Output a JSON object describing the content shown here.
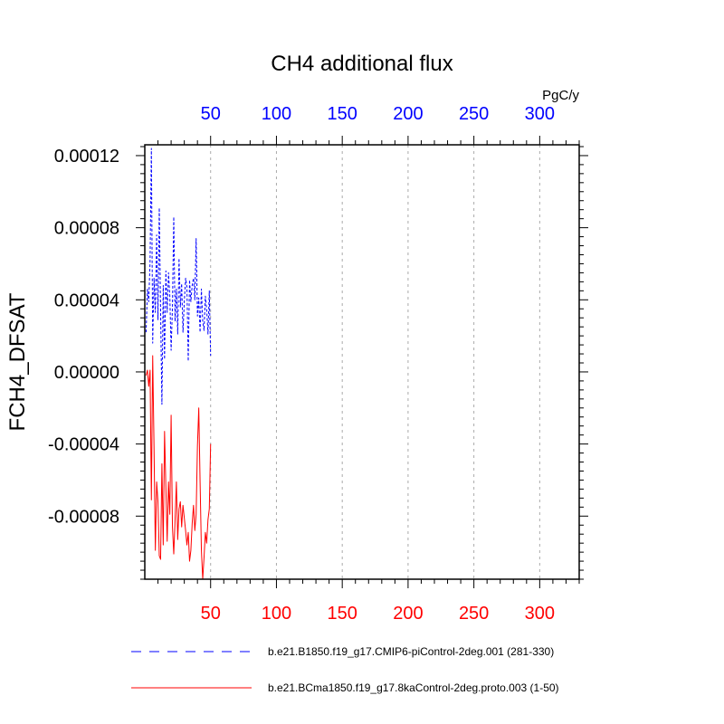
{
  "chart_data": {
    "type": "line",
    "title": "CH4 additional flux",
    "ylabel": "FCH4_DFSAT",
    "units_label": "PgC/y",
    "xlim": [
      0,
      330
    ],
    "ylim": [
      -0.000115,
      0.000126
    ],
    "grid": "vertical dotted",
    "x_ticks": [
      50,
      100,
      150,
      200,
      250,
      300
    ],
    "x_tick_labels_top": [
      "50",
      "100",
      "150",
      "200",
      "250",
      "300"
    ],
    "x_tick_labels_bottom": [
      "50",
      "100",
      "150",
      "200",
      "250",
      "300"
    ],
    "y_ticks": [
      0.00012,
      8e-05,
      4e-05,
      0.0,
      -4e-05,
      -8e-05
    ],
    "y_tick_labels": [
      "0.00012",
      "0.00008",
      "0.00004",
      "0.00000",
      "-0.00004",
      "-0.00008"
    ],
    "top_axis_color": "#0000ff",
    "bottom_axis_color": "#ff0000",
    "series": [
      {
        "name": "b.e21.B1850.f19_g17.CMIP6-piControl-2deg.001 (281-330)",
        "color": "#0000ff",
        "dash": "dashed",
        "x": [
          1,
          2,
          3,
          4,
          5,
          6,
          7,
          8,
          9,
          10,
          11,
          12,
          13,
          14,
          15,
          16,
          17,
          18,
          19,
          20,
          21,
          22,
          23,
          24,
          25,
          26,
          27,
          28,
          29,
          30,
          31,
          32,
          33,
          34,
          35,
          36,
          37,
          38,
          39,
          40,
          41,
          42,
          43,
          44,
          45,
          46,
          47,
          48,
          49,
          50
        ],
        "values": [
          2.2e-05,
          4.6e-05,
          3.9e-05,
          6.1e-05,
          0.000124,
          1.6e-05,
          5.2e-05,
          3.3e-05,
          7.6e-05,
          2.9e-05,
          9.1e-05,
          3.4e-05,
          -1.8e-05,
          4.8e-05,
          7e-06,
          5.6e-05,
          3.3e-05,
          5.5e-05,
          4.2e-05,
          1.2e-05,
          3.6e-05,
          8.6e-05,
          2.8e-05,
          4.6e-05,
          2.1e-05,
          6.3e-05,
          3.6e-05,
          4.9e-05,
          2.2e-05,
          3.9e-05,
          5.2e-05,
          4.7e-05,
          6e-06,
          5.1e-05,
          3.9e-05,
          4.8e-05,
          5.2e-05,
          4e-05,
          7.4e-05,
          3.1e-05,
          4.1e-05,
          2.2e-05,
          4.6e-05,
          2.8e-05,
          2.3e-05,
          4.2e-05,
          3.5e-05,
          2.1e-05,
          4.5e-05,
          9e-06
        ]
      },
      {
        "name": "b.e21.BCma1850.f19_g17.8kaControl-2deg.proto.003 (1-50)",
        "color": "#ff0000",
        "dash": "solid",
        "x": [
          1,
          2,
          3,
          4,
          5,
          6,
          7,
          8,
          9,
          10,
          11,
          12,
          13,
          14,
          15,
          16,
          17,
          18,
          19,
          20,
          21,
          22,
          23,
          24,
          25,
          26,
          27,
          28,
          29,
          30,
          31,
          32,
          33,
          34,
          35,
          36,
          37,
          38,
          39,
          40,
          41,
          42,
          43,
          44,
          45,
          46,
          47,
          48,
          49,
          50
        ],
        "values": [
          -2e-06,
          1e-06,
          -8e-06,
          1e-06,
          -7.1e-05,
          9e-06,
          -4.1e-05,
          -9.9e-05,
          -6.1e-05,
          -7.2e-05,
          -0.000102,
          -0.000104,
          -5.1e-05,
          -9.6e-05,
          -3.3e-05,
          -6.4e-05,
          -9.4e-05,
          -6.1e-05,
          -7.9e-05,
          -2.4e-05,
          -8.6e-05,
          -0.000101,
          -8.2e-05,
          -6.1e-05,
          -9.3e-05,
          -7.6e-05,
          -7.2e-05,
          -8.6e-05,
          -7.4e-05,
          -8.1e-05,
          -8.8e-05,
          -9.6e-05,
          -8.9e-05,
          -0.000105,
          -9.9e-05,
          -8.4e-05,
          -7.4e-05,
          -8.8e-05,
          -7.9e-05,
          -4.1e-05,
          -2e-05,
          -6.1e-05,
          -9.9e-05,
          -0.000115,
          -0.000103,
          -8.9e-05,
          -9.5e-05,
          -8.2e-05,
          -7.6e-05,
          -4e-05
        ]
      }
    ],
    "legend_placement": "bottom"
  }
}
